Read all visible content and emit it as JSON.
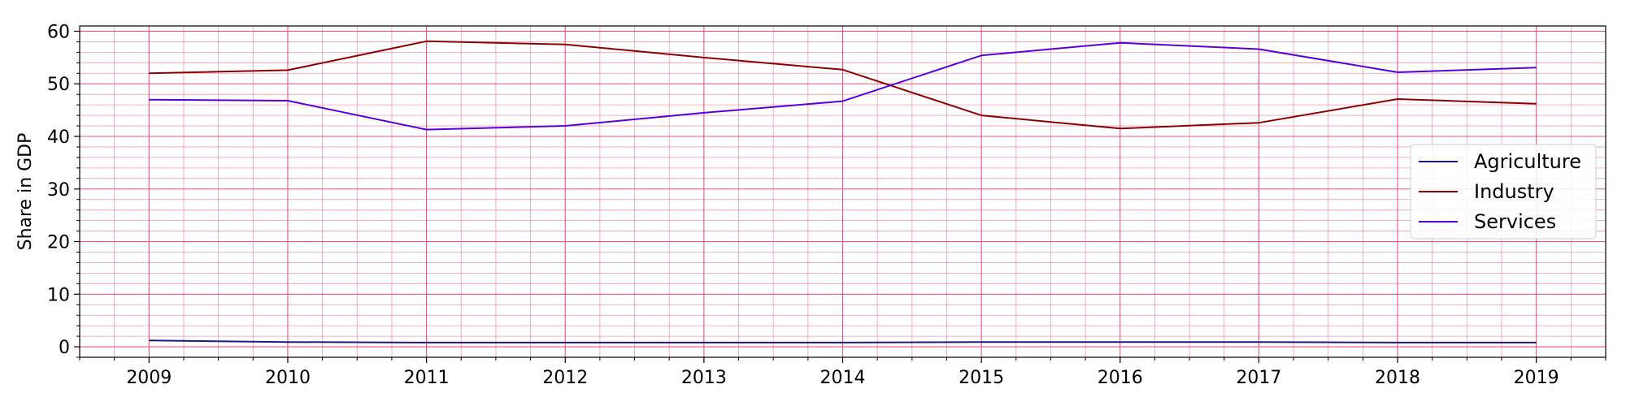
{
  "chart_data": {
    "type": "line",
    "title": "",
    "xlabel": "",
    "ylabel": "Share in GDP",
    "x": [
      2009,
      2010,
      2011,
      2012,
      2013,
      2014,
      2015,
      2016,
      2017,
      2018,
      2019
    ],
    "xlim": [
      2008.5,
      2019.5
    ],
    "ylim": [
      -2,
      61
    ],
    "yticks": [
      0,
      10,
      20,
      30,
      40,
      50,
      60
    ],
    "grid": true,
    "minor_grid": true,
    "legend_position": "center-right",
    "series": [
      {
        "name": "Agriculture",
        "color": "#1a1a7a",
        "values": [
          1.2,
          0.9,
          0.8,
          0.8,
          0.8,
          0.8,
          0.9,
          0.9,
          0.9,
          0.8,
          0.8
        ]
      },
      {
        "name": "Industry",
        "color": "#8b0000",
        "values": [
          52.0,
          52.6,
          58.1,
          57.5,
          55.0,
          52.7,
          44.0,
          41.5,
          42.6,
          47.1,
          46.2
        ]
      },
      {
        "name": "Services",
        "color": "#5500dd",
        "values": [
          47.0,
          46.8,
          41.3,
          42.0,
          44.5,
          46.7,
          55.4,
          57.8,
          56.6,
          52.2,
          53.1
        ]
      }
    ]
  }
}
